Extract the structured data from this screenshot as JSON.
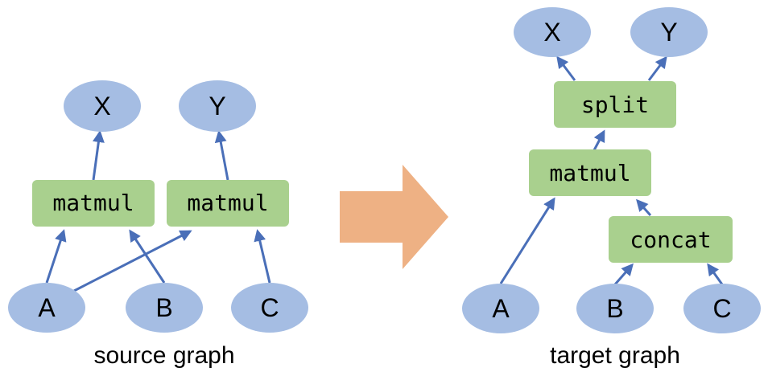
{
  "source_graph": {
    "caption": "source graph",
    "outputs": [
      "X",
      "Y"
    ],
    "ops": [
      "matmul",
      "matmul"
    ],
    "inputs": [
      "A",
      "B",
      "C"
    ]
  },
  "target_graph": {
    "caption": "target graph",
    "outputs": [
      "X",
      "Y"
    ],
    "ops": {
      "split": "split",
      "matmul": "matmul",
      "concat": "concat"
    },
    "inputs": [
      "A",
      "B",
      "C"
    ]
  },
  "colors": {
    "tensor_node": "#a5bde3",
    "op_node": "#a9d08e",
    "edge": "#4a6fb8",
    "transform_arrow": "#eeb184"
  }
}
